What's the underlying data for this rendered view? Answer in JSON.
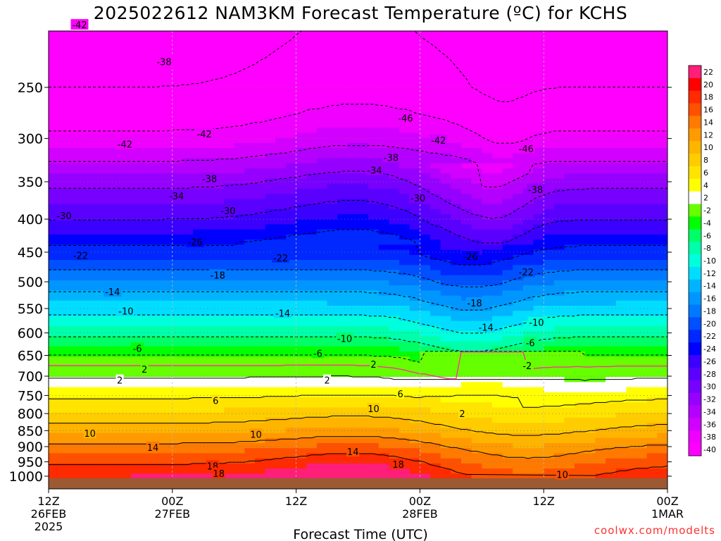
{
  "title": "2025022612 NAM3KM Forecast Temperature (ºC) for KCHS",
  "credit": "coolwx.com/modelts",
  "chart_data": {
    "type": "heatmap",
    "title": "2025022612 NAM3KM Forecast Temperature (ºC) for KCHS",
    "xlabel": "Forecast Time (UTC)",
    "ylabel": "",
    "x_ticks": [
      {
        "hour": 0,
        "l1": "12Z",
        "l2": "26FEB",
        "l3": "2025"
      },
      {
        "hour": 12,
        "l1": "00Z",
        "l2": "27FEB",
        "l3": ""
      },
      {
        "hour": 24,
        "l1": "12Z",
        "l2": "",
        "l3": ""
      },
      {
        "hour": 36,
        "l1": "00Z",
        "l2": "28FEB",
        "l3": ""
      },
      {
        "hour": 48,
        "l1": "12Z",
        "l2": "",
        "l3": ""
      },
      {
        "hour": 60,
        "l1": "00Z",
        "l2": "1MAR",
        "l3": ""
      }
    ],
    "xlim": [
      0,
      60
    ],
    "y_ticks": [
      "250",
      "300",
      "350",
      "400",
      "450",
      "500",
      "550",
      "600",
      "650",
      "700",
      "750",
      "800",
      "850",
      "900",
      "950",
      "1000"
    ],
    "y_pressure": [
      250,
      300,
      350,
      400,
      450,
      500,
      550,
      600,
      650,
      700,
      750,
      800,
      850,
      900,
      950,
      1000
    ],
    "colorbar": {
      "labels": [
        "22",
        "20",
        "18",
        "16",
        "14",
        "12",
        "10",
        "8",
        "6",
        "4",
        "2",
        "-2",
        "-4",
        "-6",
        "-8",
        "-10",
        "-12",
        "-14",
        "-16",
        "-18",
        "-20",
        "-22",
        "-24",
        "-26",
        "-28",
        "-30",
        "-32",
        "-34",
        "-36",
        "-38",
        "-40"
      ],
      "colors": [
        "#ff1e78",
        "#ff0000",
        "#ff2a00",
        "#ff5000",
        "#ff7a00",
        "#ff9a00",
        "#ffb400",
        "#ffcc00",
        "#ffe400",
        "#ffff00",
        "#ffffff",
        "#66ff00",
        "#00ff00",
        "#00ff66",
        "#00ffaa",
        "#00ffdd",
        "#00ddff",
        "#00b4ff",
        "#0096ff",
        "#0078ff",
        "#0050ff",
        "#0028ff",
        "#0000ff",
        "#3c00ff",
        "#5a00ff",
        "#7800ff",
        "#9600ff",
        "#b400ff",
        "#d200ff",
        "#f000ff",
        "#ff00ff"
      ]
    },
    "ground_color": "#9c5a32",
    "freezing_line_color": "#ff3399",
    "contour_labels": [
      {
        "t": "-42",
        "h": 3.0,
        "p": 200
      },
      {
        "t": "-38",
        "h": 11.2,
        "p": 228
      },
      {
        "t": "-46",
        "h": 34.6,
        "p": 279
      },
      {
        "t": "-42",
        "h": 15.1,
        "p": 295
      },
      {
        "t": "-42",
        "h": 7.4,
        "p": 306
      },
      {
        "t": "-42",
        "h": 37.8,
        "p": 302
      },
      {
        "t": "-46",
        "h": 46.3,
        "p": 311
      },
      {
        "t": "-38",
        "h": 33.2,
        "p": 321
      },
      {
        "t": "-34",
        "h": 31.6,
        "p": 336
      },
      {
        "t": "-38",
        "h": 15.6,
        "p": 346
      },
      {
        "t": "-38",
        "h": 47.2,
        "p": 360
      },
      {
        "t": "-34",
        "h": 12.4,
        "p": 368
      },
      {
        "t": "-30",
        "h": 35.8,
        "p": 371
      },
      {
        "t": "-30",
        "h": 17.4,
        "p": 388
      },
      {
        "t": "-30",
        "h": 1.5,
        "p": 395
      },
      {
        "t": "-26",
        "h": 14.2,
        "p": 434
      },
      {
        "t": "-26",
        "h": 40.9,
        "p": 457
      },
      {
        "t": "-22",
        "h": 3.1,
        "p": 455
      },
      {
        "t": "-22",
        "h": 22.5,
        "p": 459
      },
      {
        "t": "-22",
        "h": 46.3,
        "p": 483
      },
      {
        "t": "-18",
        "h": 16.4,
        "p": 488
      },
      {
        "t": "-14",
        "h": 6.2,
        "p": 518
      },
      {
        "t": "-18",
        "h": 41.3,
        "p": 539
      },
      {
        "t": "-10",
        "h": 7.5,
        "p": 555
      },
      {
        "t": "-14",
        "h": 22.7,
        "p": 559
      },
      {
        "t": "-10",
        "h": 47.3,
        "p": 578
      },
      {
        "t": "-14",
        "h": 42.4,
        "p": 588
      },
      {
        "t": "-10",
        "h": 28.7,
        "p": 612
      },
      {
        "t": "-6",
        "h": 46.7,
        "p": 621
      },
      {
        "t": "-6",
        "h": 8.6,
        "p": 634
      },
      {
        "t": "-6",
        "h": 26.1,
        "p": 645
      },
      {
        "t": "2",
        "h": 31.5,
        "p": 671
      },
      {
        "t": "-2",
        "h": 46.4,
        "p": 674
      },
      {
        "t": "2",
        "h": 9.3,
        "p": 683
      },
      {
        "t": "2",
        "h": 6.9,
        "p": 710
      },
      {
        "t": "2",
        "h": 27.0,
        "p": 710
      },
      {
        "t": "6",
        "h": 34.1,
        "p": 745
      },
      {
        "t": "6",
        "h": 16.2,
        "p": 763
      },
      {
        "t": "10",
        "h": 31.5,
        "p": 786
      },
      {
        "t": "2",
        "h": 40.1,
        "p": 800
      },
      {
        "t": "10",
        "h": 4.0,
        "p": 858
      },
      {
        "t": "10",
        "h": 20.1,
        "p": 861
      },
      {
        "t": "14",
        "h": 10.1,
        "p": 902
      },
      {
        "t": "14",
        "h": 29.5,
        "p": 916
      },
      {
        "t": "18",
        "h": 33.9,
        "p": 958
      },
      {
        "t": "18",
        "h": 15.9,
        "p": 964
      },
      {
        "t": "18",
        "h": 16.5,
        "p": 990
      },
      {
        "t": "10",
        "h": 49.8,
        "p": 994
      }
    ]
  }
}
